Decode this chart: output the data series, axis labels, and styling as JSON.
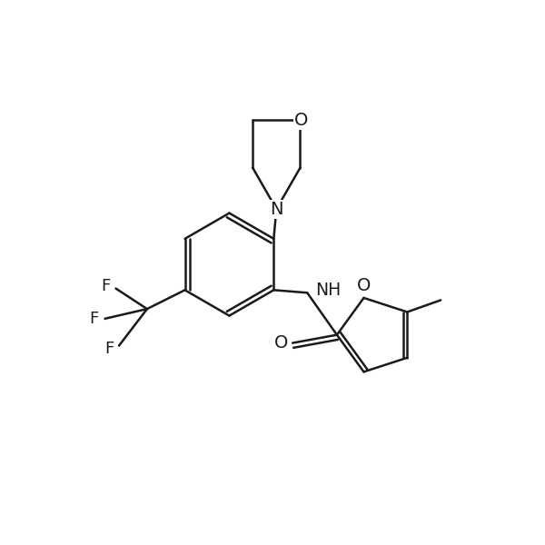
{
  "background_color": "#ffffff",
  "line_color": "#1a1a1a",
  "lw": 1.8,
  "fs": 13,
  "figsize": [
    6.0,
    6.0
  ],
  "dpi": 100,
  "xlim": [
    0,
    10
  ],
  "ylim": [
    0,
    10
  ]
}
